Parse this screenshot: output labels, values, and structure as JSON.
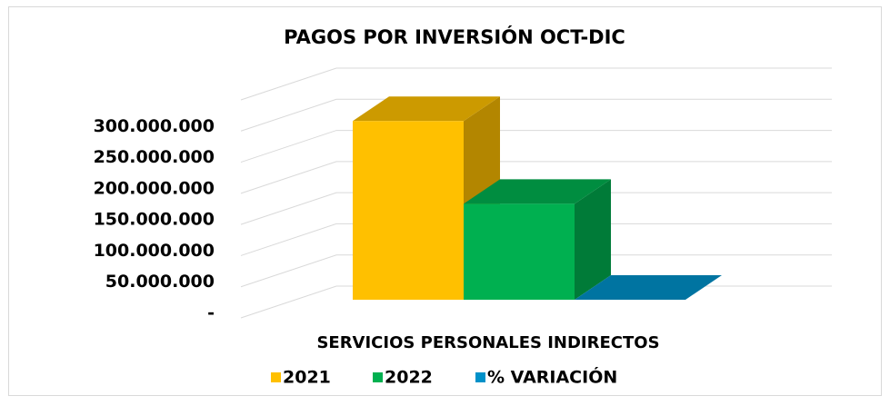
{
  "chart_data": {
    "type": "bar3d",
    "title": "PAGOS POR INVERSIÓN OCT-DIC",
    "categories": [
      "SERVICIOS PERSONALES INDIRECTOS"
    ],
    "series": [
      {
        "name": "2021",
        "color": "#FFC000",
        "values": [
          287000000
        ]
      },
      {
        "name": "2022",
        "color": "#00B050",
        "values": [
          154000000
        ]
      },
      {
        "name": "% VARIACIÓN",
        "color": "#0091C9",
        "values": [
          -0.46
        ]
      }
    ],
    "ylim": [
      0,
      350000000
    ],
    "yticks": [
      {
        "value": 0,
        "label": "-"
      },
      {
        "value": 50000000,
        "label": "50.000.000"
      },
      {
        "value": 100000000,
        "label": "100.000.000"
      },
      {
        "value": 150000000,
        "label": "150.000.000"
      },
      {
        "value": 200000000,
        "label": "200.000.000"
      },
      {
        "value": 250000000,
        "label": "250.000.000"
      },
      {
        "value": 300000000,
        "label": "300.000.000"
      }
    ],
    "grid": true,
    "legend": "bottom"
  }
}
